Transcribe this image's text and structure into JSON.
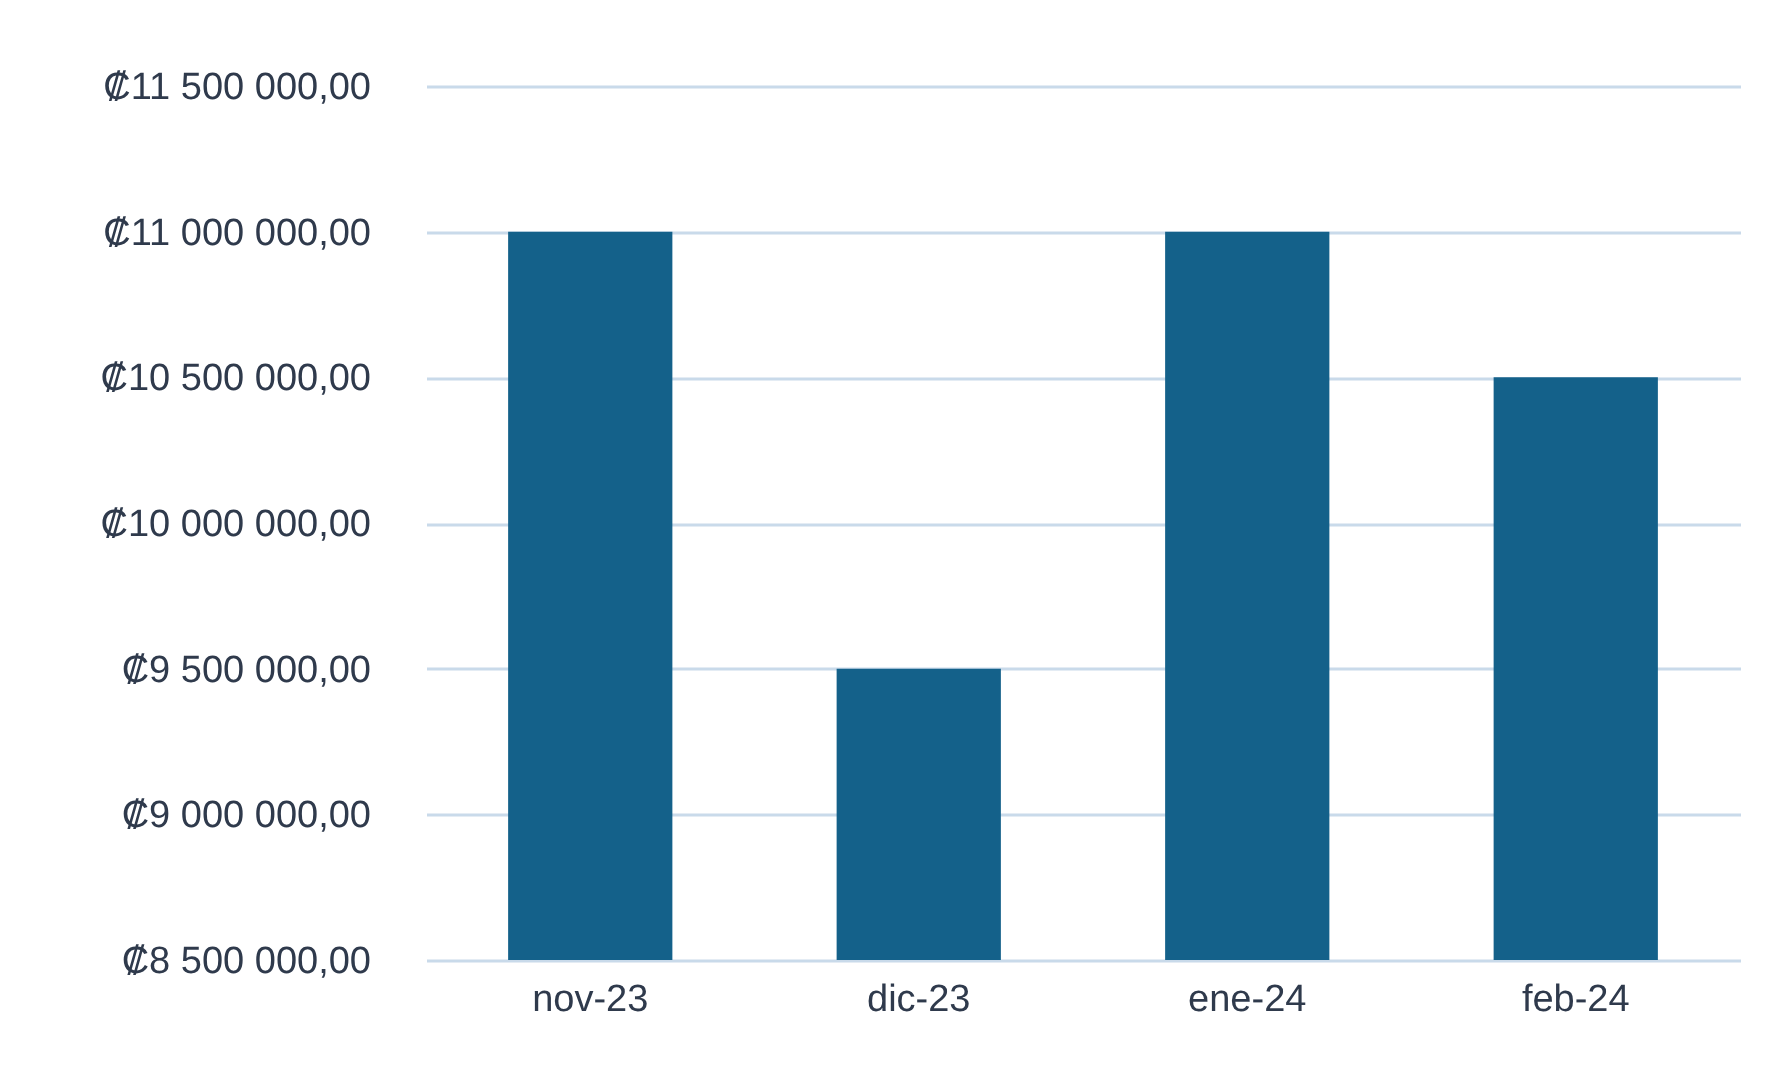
{
  "chart_data": {
    "type": "bar",
    "categories": [
      "nov-23",
      "dic-23",
      "ene-24",
      "feb-24"
    ],
    "values": [
      11000000,
      9500000,
      11000000,
      10500000
    ],
    "color": "#14618a",
    "ylim": [
      8500000,
      11500000
    ],
    "yticks": [
      {
        "value": 8500000,
        "label": "₡8 500 000,00"
      },
      {
        "value": 9000000,
        "label": "₡9 000 000,00"
      },
      {
        "value": 9500000,
        "label": "₡9 500 000,00"
      },
      {
        "value": 10000000,
        "label": "₡10 000 000,00"
      },
      {
        "value": 10500000,
        "label": "₡10 500 000,00"
      },
      {
        "value": 11000000,
        "label": "₡11 000 000,00"
      },
      {
        "value": 11500000,
        "label": "₡11 500 000,00"
      }
    ],
    "grid": "y"
  }
}
